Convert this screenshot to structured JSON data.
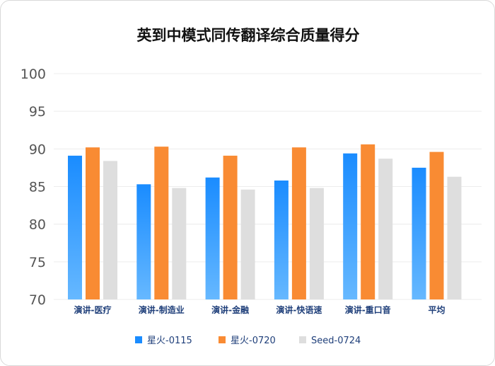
{
  "chart_data": {
    "type": "bar",
    "title": "英到中模式同传翻译综合质量得分",
    "xlabel": "",
    "ylabel": "",
    "categories": [
      "演讲-医疗",
      "演讲-制造业",
      "演讲-金融",
      "演讲-快语速",
      "演讲-重口音",
      "平均"
    ],
    "series": [
      {
        "name": "星火-0115",
        "color": "#1a8cff",
        "values": [
          89.1,
          85.3,
          86.2,
          85.8,
          89.4,
          87.5
        ]
      },
      {
        "name": "星火-0720",
        "color": "#f98b33",
        "values": [
          90.2,
          90.3,
          89.1,
          90.2,
          90.6,
          89.6
        ]
      },
      {
        "name": "Seed-0724",
        "color": "#dedede",
        "values": [
          88.4,
          84.8,
          84.6,
          84.8,
          88.7,
          86.3
        ]
      }
    ],
    "ylim": [
      70,
      100
    ],
    "yticks": [
      70,
      75,
      80,
      85,
      90,
      95,
      100
    ],
    "grid": true,
    "legend": "bottom"
  }
}
